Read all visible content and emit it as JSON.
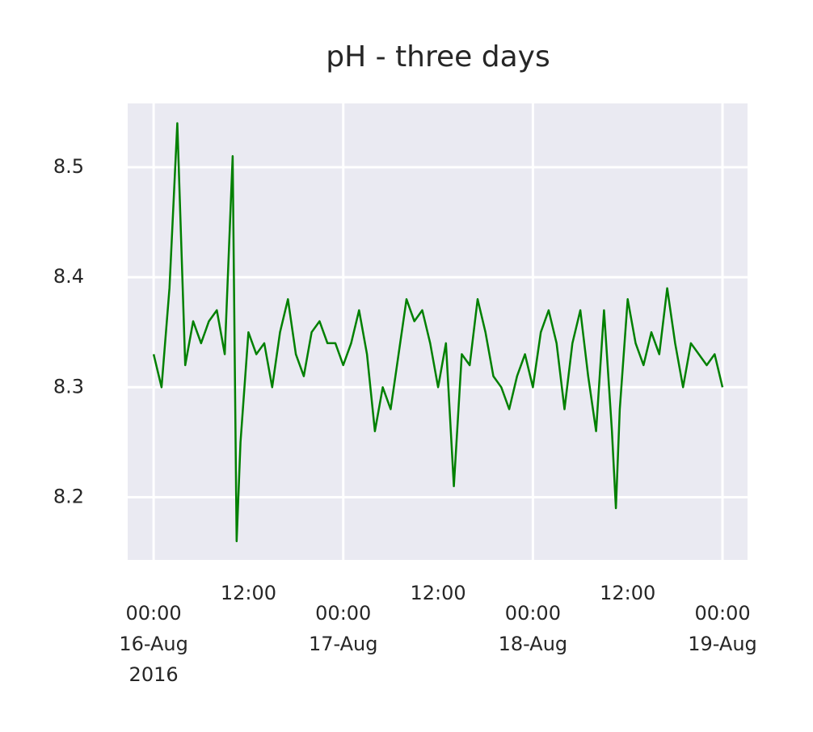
{
  "chart_data": {
    "type": "line",
    "title": "pH - three days",
    "x": [
      "2016-08-16T00:00",
      "2016-08-16T01:00",
      "2016-08-16T02:00",
      "2016-08-16T03:00",
      "2016-08-16T04:00",
      "2016-08-16T05:00",
      "2016-08-16T06:00",
      "2016-08-16T07:00",
      "2016-08-16T08:00",
      "2016-08-16T09:00",
      "2016-08-16T10:00",
      "2016-08-16T10:30",
      "2016-08-16T11:00",
      "2016-08-16T12:00",
      "2016-08-16T13:00",
      "2016-08-16T14:00",
      "2016-08-16T15:00",
      "2016-08-16T16:00",
      "2016-08-16T17:00",
      "2016-08-16T18:00",
      "2016-08-16T19:00",
      "2016-08-16T20:00",
      "2016-08-16T21:00",
      "2016-08-16T22:00",
      "2016-08-16T23:00",
      "2016-08-17T00:00",
      "2016-08-17T01:00",
      "2016-08-17T02:00",
      "2016-08-17T03:00",
      "2016-08-17T04:00",
      "2016-08-17T05:00",
      "2016-08-17T06:00",
      "2016-08-17T07:00",
      "2016-08-17T08:00",
      "2016-08-17T09:00",
      "2016-08-17T10:00",
      "2016-08-17T11:00",
      "2016-08-17T12:00",
      "2016-08-17T13:00",
      "2016-08-17T14:00",
      "2016-08-17T15:00",
      "2016-08-17T16:00",
      "2016-08-17T17:00",
      "2016-08-17T18:00",
      "2016-08-17T19:00",
      "2016-08-17T20:00",
      "2016-08-17T21:00",
      "2016-08-17T22:00",
      "2016-08-17T23:00",
      "2016-08-18T00:00",
      "2016-08-18T01:00",
      "2016-08-18T02:00",
      "2016-08-18T03:00",
      "2016-08-18T04:00",
      "2016-08-18T05:00",
      "2016-08-18T06:00",
      "2016-08-18T07:00",
      "2016-08-18T08:00",
      "2016-08-18T09:00",
      "2016-08-18T10:00",
      "2016-08-18T10:30",
      "2016-08-18T11:00",
      "2016-08-18T12:00",
      "2016-08-18T13:00",
      "2016-08-18T14:00",
      "2016-08-18T15:00",
      "2016-08-18T16:00",
      "2016-08-18T17:00",
      "2016-08-18T18:00",
      "2016-08-18T19:00",
      "2016-08-18T20:00",
      "2016-08-18T21:00",
      "2016-08-18T22:00",
      "2016-08-18T23:00",
      "2016-08-19T00:00"
    ],
    "series": [
      {
        "color": "#008000",
        "values": [
          8.33,
          8.3,
          8.39,
          8.54,
          8.32,
          8.36,
          8.34,
          8.36,
          8.37,
          8.33,
          8.51,
          8.16,
          8.25,
          8.35,
          8.33,
          8.34,
          8.3,
          8.35,
          8.38,
          8.33,
          8.31,
          8.35,
          8.36,
          8.34,
          8.34,
          8.32,
          8.34,
          8.37,
          8.33,
          8.26,
          8.3,
          8.28,
          8.33,
          8.38,
          8.36,
          8.37,
          8.34,
          8.3,
          8.34,
          8.21,
          8.33,
          8.32,
          8.38,
          8.35,
          8.31,
          8.3,
          8.28,
          8.31,
          8.33,
          8.3,
          8.35,
          8.37,
          8.34,
          8.28,
          8.34,
          8.37,
          8.31,
          8.26,
          8.37,
          8.26,
          8.19,
          8.28,
          8.38,
          8.34,
          8.32,
          8.35,
          8.33,
          8.39,
          8.34,
          8.3,
          8.34,
          8.33,
          8.32,
          8.33,
          8.3
        ]
      }
    ],
    "xlim": [
      "2016-08-15T20:43",
      "2016-08-19T03:10"
    ],
    "xticks": [
      {
        "value": "2016-08-16T00:00",
        "label": "00:00\n16-Aug\n2016"
      },
      {
        "value": "2016-08-17T00:00",
        "label": "00:00\n17-Aug"
      },
      {
        "value": "2016-08-18T00:00",
        "label": "00:00\n18-Aug"
      },
      {
        "value": "2016-08-19T00:00",
        "label": "00:00\n19-Aug"
      }
    ],
    "xticks_minor": [
      {
        "value": "2016-08-16T12:00",
        "label": "12:00"
      },
      {
        "value": "2016-08-17T12:00",
        "label": "12:00"
      },
      {
        "value": "2016-08-18T12:00",
        "label": "12:00"
      }
    ],
    "ylim": [
      8.143,
      8.558
    ],
    "yticks": [
      8.2,
      8.3,
      8.4,
      8.5
    ],
    "grid": true
  }
}
